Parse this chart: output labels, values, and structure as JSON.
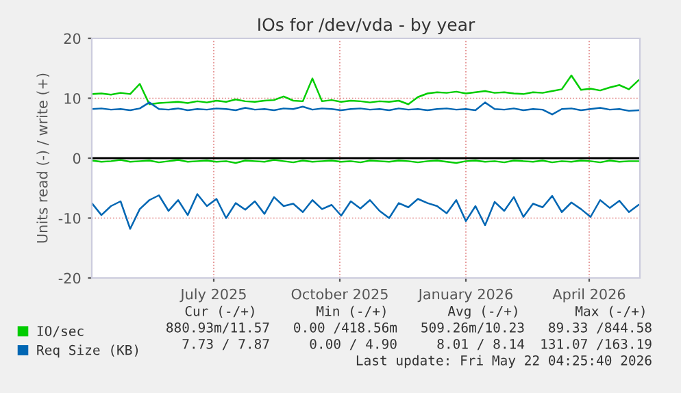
{
  "chart_data": {
    "type": "line",
    "title": "IOs for /dev/vda - by year",
    "ylabel": "Units read (-) / write (+)",
    "x": [
      "2025-04-17",
      "2025-04-24",
      "2025-05-01",
      "2025-05-08",
      "2025-05-15",
      "2025-05-22",
      "2025-05-29",
      "2025-06-05",
      "2025-06-12",
      "2025-06-19",
      "2025-06-26",
      "2025-07-03",
      "2025-07-10",
      "2025-07-17",
      "2025-07-24",
      "2025-07-31",
      "2025-08-07",
      "2025-08-14",
      "2025-08-21",
      "2025-08-28",
      "2025-09-04",
      "2025-09-11",
      "2025-09-18",
      "2025-09-25",
      "2025-10-02",
      "2025-10-09",
      "2025-10-16",
      "2025-10-23",
      "2025-10-30",
      "2025-11-06",
      "2025-11-13",
      "2025-11-20",
      "2025-11-27",
      "2025-12-04",
      "2025-12-11",
      "2025-12-18",
      "2025-12-25",
      "2026-01-01",
      "2026-01-08",
      "2026-01-15",
      "2026-01-22",
      "2026-01-29",
      "2026-02-05",
      "2026-02-12",
      "2026-02-19",
      "2026-02-26",
      "2026-03-05",
      "2026-03-12",
      "2026-03-19",
      "2026-03-26",
      "2026-04-02",
      "2026-04-09",
      "2026-04-16",
      "2026-04-23",
      "2026-04-30",
      "2026-05-07",
      "2026-05-14",
      "2026-05-21"
    ],
    "series": [
      {
        "name": "IO/sec",
        "color": "#00cc00",
        "values": [
          10.7,
          10.8,
          10.6,
          10.9,
          10.7,
          12.4,
          9.0,
          9.2,
          9.3,
          9.4,
          9.2,
          9.5,
          9.3,
          9.6,
          9.4,
          9.8,
          9.5,
          9.4,
          9.6,
          9.7,
          10.3,
          9.6,
          9.5,
          13.3,
          9.5,
          9.7,
          9.4,
          9.6,
          9.5,
          9.3,
          9.5,
          9.4,
          9.6,
          9.0,
          10.2,
          10.8,
          11.0,
          10.9,
          11.1,
          10.8,
          11.0,
          11.2,
          10.9,
          11.0,
          10.8,
          10.7,
          11.0,
          10.9,
          11.2,
          11.5,
          13.8,
          11.4,
          11.6,
          11.3,
          11.8,
          12.2,
          11.5,
          13.0
        ]
      },
      {
        "color": "#00cc00",
        "values": [
          -0.4,
          -0.6,
          -0.5,
          -0.3,
          -0.6,
          -0.5,
          -0.4,
          -0.7,
          -0.5,
          -0.3,
          -0.6,
          -0.5,
          -0.4,
          -0.6,
          -0.5,
          -0.8,
          -0.4,
          -0.5,
          -0.6,
          -0.3,
          -0.5,
          -0.7,
          -0.4,
          -0.6,
          -0.5,
          -0.4,
          -0.6,
          -0.5,
          -0.7,
          -0.4,
          -0.5,
          -0.6,
          -0.4,
          -0.5,
          -0.7,
          -0.5,
          -0.4,
          -0.6,
          -0.8,
          -0.5,
          -0.4,
          -0.6,
          -0.5,
          -0.7,
          -0.4,
          -0.5,
          -0.6,
          -0.4,
          -0.7,
          -0.5,
          -0.6,
          -0.4,
          -0.5,
          -0.7,
          -0.4,
          -0.6,
          -0.5,
          -0.5
        ]
      },
      {
        "name": "Req Size (KB)",
        "color": "#0066b3",
        "values": [
          8.2,
          8.3,
          8.1,
          8.2,
          8.0,
          8.3,
          9.3,
          8.2,
          8.1,
          8.3,
          8.0,
          8.2,
          8.1,
          8.3,
          8.2,
          8.0,
          8.4,
          8.1,
          8.2,
          8.0,
          8.3,
          8.2,
          8.6,
          8.1,
          8.3,
          8.2,
          8.0,
          8.2,
          8.3,
          8.1,
          8.2,
          8.0,
          8.3,
          8.1,
          8.2,
          8.0,
          8.2,
          8.3,
          8.1,
          8.2,
          8.0,
          9.3,
          8.2,
          8.1,
          8.3,
          8.0,
          8.2,
          8.1,
          7.3,
          8.2,
          8.3,
          8.0,
          8.2,
          8.4,
          8.1,
          8.2,
          7.9,
          8.0
        ]
      },
      {
        "color": "#0066b3",
        "values": [
          -7.5,
          -9.5,
          -8.0,
          -7.2,
          -11.8,
          -8.5,
          -7.0,
          -6.2,
          -8.8,
          -7.0,
          -9.5,
          -6.0,
          -8.0,
          -6.8,
          -10.0,
          -7.5,
          -8.6,
          -7.2,
          -9.3,
          -6.5,
          -8.0,
          -7.6,
          -9.0,
          -7.0,
          -8.5,
          -7.8,
          -9.6,
          -7.2,
          -8.4,
          -7.0,
          -8.8,
          -10.0,
          -7.5,
          -8.2,
          -6.8,
          -7.5,
          -8.0,
          -9.2,
          -7.0,
          -10.5,
          -8.0,
          -11.2,
          -7.3,
          -8.8,
          -6.5,
          -9.8,
          -7.6,
          -8.2,
          -6.3,
          -9.0,
          -7.4,
          -8.5,
          -9.8,
          -7.0,
          -8.3,
          -7.1,
          -9.0,
          -7.8
        ]
      }
    ],
    "xlim": [
      "2025-04-17",
      "2026-05-22"
    ],
    "xticks": [
      {
        "value": "2025-07-15",
        "label": "July 2025"
      },
      {
        "value": "2025-10-15",
        "label": "October 2025"
      },
      {
        "value": "2026-01-15",
        "label": "January 2026"
      },
      {
        "value": "2026-04-15",
        "label": "April 2026"
      }
    ],
    "ylim": [
      -20,
      20
    ],
    "yticks": [
      -20,
      -10,
      0,
      10,
      20
    ],
    "grid": true,
    "legend": "bottom",
    "ref_lines": [
      {
        "axis": "y",
        "value": 0,
        "color": "#000000"
      }
    ],
    "annotations": [
      "Cur (-/+)",
      "Min (-/+)",
      "Avg (-/+)",
      "Max (-/+)",
      "880.93m/11.57",
      "0.00 /418.56m",
      "509.26m/10.23",
      "89.33 /844.58",
      "7.73 / 7.87",
      "0.00 / 4.90",
      "8.01 / 8.14",
      "131.07 /163.19",
      "Last update: Fri May 22 04:25:40 2026"
    ]
  }
}
